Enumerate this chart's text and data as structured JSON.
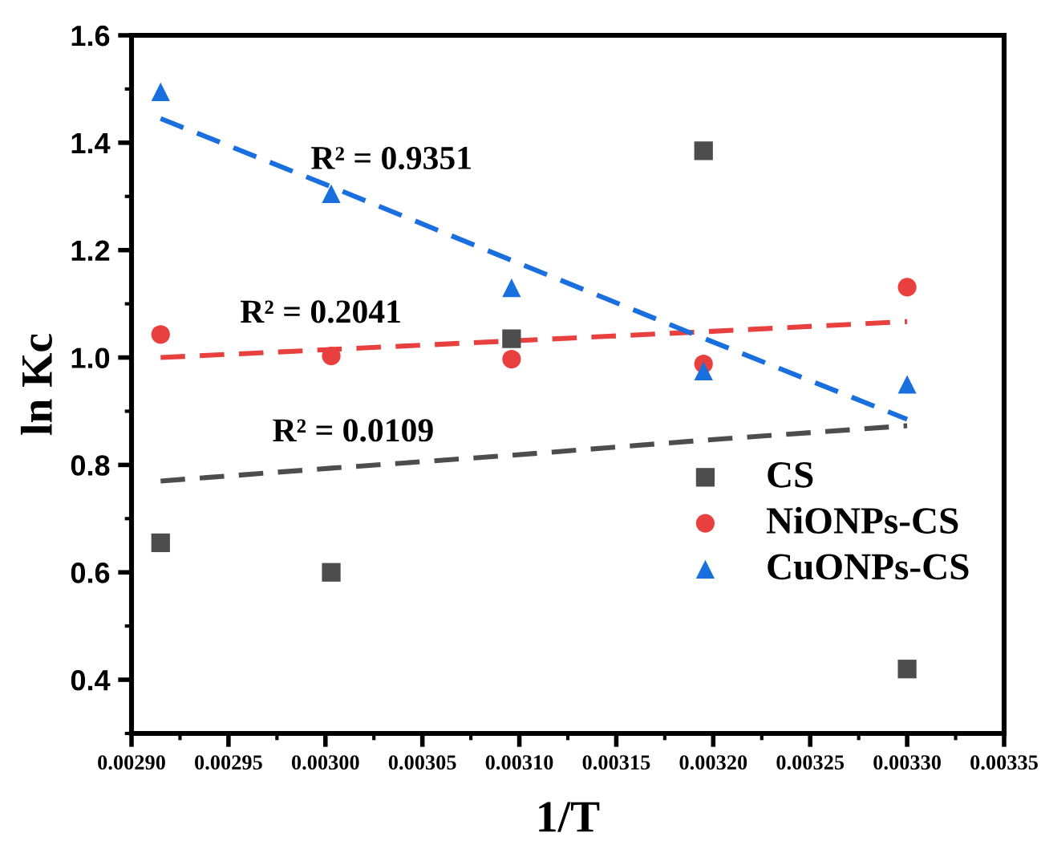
{
  "chart_data": {
    "type": "scatter",
    "xlabel": "1/T",
    "ylabel": "ln Kc",
    "x": [
      0.002915,
      0.003003,
      0.003096,
      0.003195,
      0.0033
    ],
    "series": [
      {
        "name": "CS",
        "color": "#4d4d4d",
        "marker": "square",
        "values": [
          0.655,
          0.6,
          1.035,
          1.385,
          0.42
        ]
      },
      {
        "name": "NiONPs-CS",
        "color": "#e8403f",
        "marker": "circle",
        "values": [
          1.043,
          1.003,
          0.997,
          0.988,
          1.131
        ]
      },
      {
        "name": "CuONPs-CS",
        "color": "#1a6fdf",
        "marker": "triangle",
        "values": [
          1.495,
          1.305,
          1.13,
          0.975,
          0.95
        ]
      },
      {
        "type": "line",
        "color": "#4d4d4d",
        "line_style": "dashed",
        "marker": "none",
        "values": [
          0.77,
          0.794,
          0.818,
          0.846,
          0.873
        ]
      },
      {
        "type": "line",
        "color": "#e8403f",
        "line_style": "dashed",
        "marker": "none",
        "values": [
          1.0,
          1.015,
          1.031,
          1.048,
          1.067
        ]
      },
      {
        "type": "line",
        "color": "#1a6fdf",
        "line_style": "dashed",
        "marker": "none",
        "values": [
          1.445,
          1.318,
          1.181,
          1.036,
          0.885
        ]
      }
    ],
    "xlim": [
      0.0029,
      0.00335
    ],
    "xticks": [
      {
        "value": 0.0029,
        "label": "0.00290"
      },
      {
        "value": 0.00295,
        "label": "0.00295"
      },
      {
        "value": 0.003,
        "label": "0.00300"
      },
      {
        "value": 0.00305,
        "label": "0.00305"
      },
      {
        "value": 0.0031,
        "label": "0.00310"
      },
      {
        "value": 0.00315,
        "label": "0.00315"
      },
      {
        "value": 0.0032,
        "label": "0.00320"
      },
      {
        "value": 0.00325,
        "label": "0.00325"
      },
      {
        "value": 0.0033,
        "label": "0.00330"
      },
      {
        "value": 0.00335,
        "label": "0.00335"
      }
    ],
    "ylim": [
      0.3,
      1.6
    ],
    "yticks": [
      {
        "value": 0.4,
        "label": "0.4"
      },
      {
        "value": 0.6,
        "label": "0.6"
      },
      {
        "value": 0.8,
        "label": "0.8"
      },
      {
        "value": 1.0,
        "label": "1.0"
      },
      {
        "value": 1.2,
        "label": "1.2"
      },
      {
        "value": 1.4,
        "label": "1.4"
      },
      {
        "value": 1.6,
        "label": "1.6"
      }
    ],
    "grid": false,
    "legend": "right",
    "annotations": [
      "R² = 0.9351",
      "R² = 0.2041",
      "R² = 0.0109"
    ]
  }
}
